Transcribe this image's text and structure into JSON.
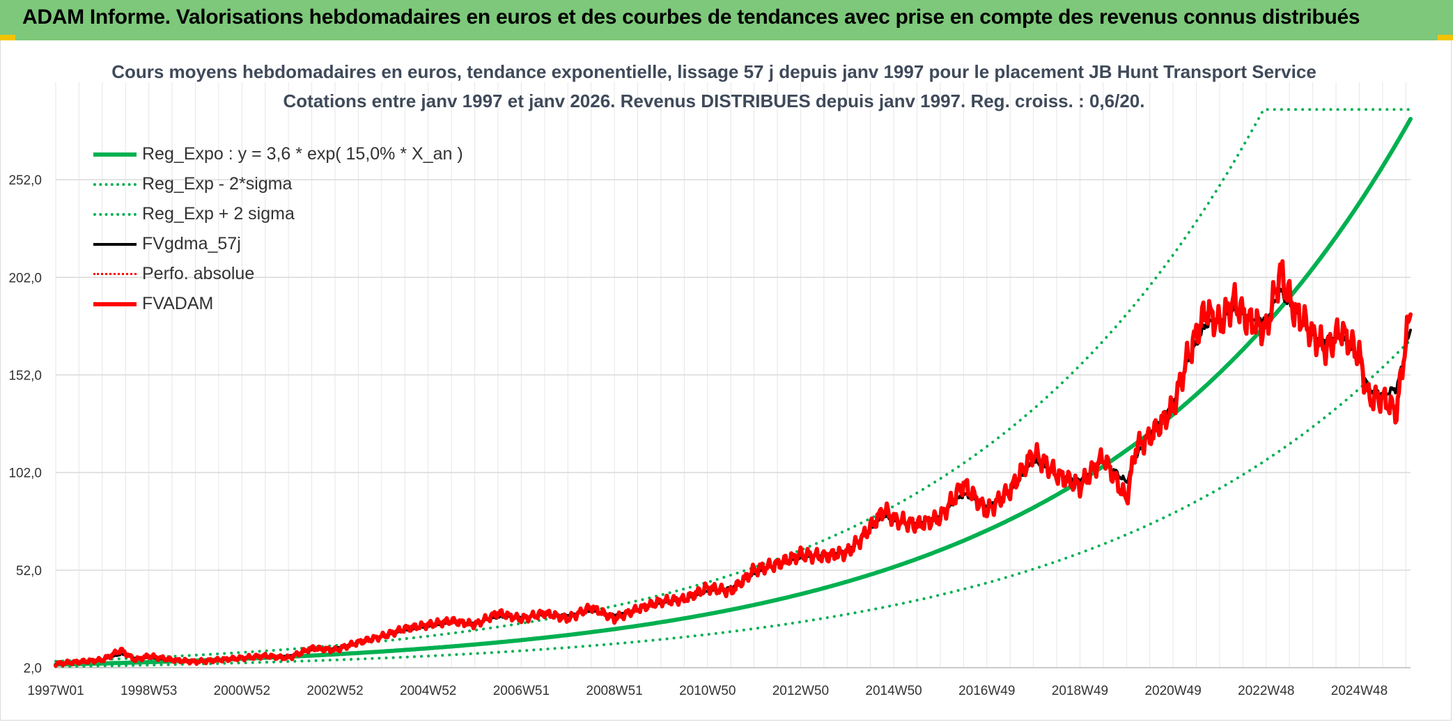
{
  "banner": {
    "title": "ADAM Informe. Valorisations hebdomadaires en euros et des courbes de tendances avec prise en compte des revenus connus distribués"
  },
  "colors": {
    "banner": "#7dc87a",
    "trend": "#00b050",
    "price": "#ff0000",
    "average": "#000000",
    "grid": "#d9d9d9"
  },
  "chart_data": {
    "type": "line",
    "title": "Cours moyens hebdomadaires en euros, tendance exponentielle, lissage 57 j depuis janv 1997 pour le placement JB Hunt Transport Service",
    "subtitle": "Cotations entre janv 1997 et janv 2026. Revenus DISTRIBUES depuis janv 1997. Reg. croiss. : 0,6/20.",
    "x_range": [
      1997.0,
      2026.1
    ],
    "ylim": [
      2.0,
      302.0
    ],
    "y_ticks": [
      2.0,
      52.0,
      102.0,
      152.0,
      202.0,
      252.0
    ],
    "y_tick_labels": [
      "2,0",
      "52,0",
      "102,0",
      "152,0",
      "202,0",
      "252,0"
    ],
    "x_tick_labels": [
      "1997W01",
      "1998W53",
      "2000W52",
      "2002W52",
      "2004W52",
      "2006W51",
      "2008W51",
      "2010W50",
      "2012W50",
      "2014W50",
      "2016W49",
      "2018W49",
      "2020W49",
      "2022W48",
      "2024W48"
    ],
    "x_tick_values": [
      1997.0,
      1999.0,
      2001.0,
      2003.0,
      2005.0,
      2007.0,
      2009.0,
      2011.0,
      2013.0,
      2015.0,
      2017.0,
      2019.0,
      2021.0,
      2023.0,
      2025.0
    ],
    "legend": [
      {
        "label": "Reg_Expo : y = 3,6 * exp( 15,0% *  X_an )",
        "color": "#00b050",
        "style": "solid",
        "width": 6
      },
      {
        "label": "Reg_Exp - 2*sigma",
        "color": "#00b050",
        "style": "dotted",
        "width": 4
      },
      {
        "label": "Reg_Exp + 2 sigma",
        "color": "#00b050",
        "style": "dotted",
        "width": 4
      },
      {
        "label": "FVgdma_57j",
        "color": "#000000",
        "style": "solid",
        "width": 4
      },
      {
        "label": "Perfo. absolue",
        "color": "#ff0000",
        "style": "dotted",
        "width": 3
      },
      {
        "label": "FVADAM",
        "color": "#ff0000",
        "style": "solid",
        "width": 6
      }
    ],
    "series": [
      {
        "name": "Reg_Expo",
        "model": "exp",
        "a": 3.6,
        "b": 0.15
      },
      {
        "name": "Reg_Exp - 2*sigma",
        "model": "exp",
        "a": 2.5,
        "b": 0.145
      },
      {
        "name": "Reg_Exp + 2 sigma",
        "model": "exp",
        "a": 5.3,
        "b": 0.154,
        "cap": 288
      },
      {
        "name": "FVADAM",
        "x": [
          1997.0,
          1997.5,
          1998.0,
          1998.4,
          1998.7,
          1999.0,
          1999.5,
          2000.0,
          2000.5,
          2001.0,
          2001.5,
          2002.0,
          2002.5,
          2003.0,
          2003.5,
          2004.0,
          2004.5,
          2005.0,
          2005.5,
          2006.0,
          2006.5,
          2007.0,
          2007.5,
          2008.0,
          2008.5,
          2009.0,
          2009.5,
          2010.0,
          2010.5,
          2011.0,
          2011.5,
          2012.0,
          2012.5,
          2013.0,
          2013.5,
          2014.0,
          2014.3,
          2014.8,
          2015.0,
          2015.5,
          2016.0,
          2016.5,
          2017.0,
          2017.5,
          2018.0,
          2018.5,
          2019.0,
          2019.5,
          2020.0,
          2020.2,
          2020.5,
          2021.0,
          2021.3,
          2021.7,
          2022.0,
          2022.3,
          2022.6,
          2023.0,
          2023.3,
          2023.6,
          2023.8,
          2024.0,
          2024.3,
          2024.6,
          2025.0,
          2025.2,
          2025.5,
          2025.8,
          2026.0,
          2026.1
        ],
        "values": [
          4,
          5,
          6,
          11,
          6,
          8,
          6,
          5,
          6,
          7,
          8,
          7,
          12,
          11,
          15,
          18,
          22,
          24,
          26,
          24,
          30,
          27,
          30,
          27,
          33,
          27,
          32,
          36,
          37,
          43,
          41,
          52,
          55,
          60,
          59,
          61,
          68,
          83,
          78,
          75,
          79,
          96,
          82,
          93,
          112,
          101,
          95,
          110,
          88,
          115,
          120,
          135,
          160,
          185,
          178,
          190,
          180,
          175,
          205,
          185,
          180,
          172,
          165,
          175,
          162,
          140,
          140,
          133,
          170,
          183
        ]
      },
      {
        "name": "FVgdma_57j",
        "x": [
          1997.0,
          1997.5,
          1998.0,
          1998.4,
          1998.7,
          1999.0,
          1999.5,
          2000.0,
          2000.5,
          2001.0,
          2001.5,
          2002.0,
          2002.5,
          2003.0,
          2003.5,
          2004.0,
          2004.5,
          2005.0,
          2005.5,
          2006.0,
          2006.5,
          2007.0,
          2007.5,
          2008.0,
          2008.5,
          2009.0,
          2009.5,
          2010.0,
          2010.5,
          2011.0,
          2011.5,
          2012.0,
          2012.5,
          2013.0,
          2013.5,
          2014.0,
          2014.3,
          2014.8,
          2015.0,
          2015.5,
          2016.0,
          2016.5,
          2017.0,
          2017.5,
          2018.0,
          2018.5,
          2019.0,
          2019.5,
          2020.0,
          2020.2,
          2020.5,
          2021.0,
          2021.3,
          2021.7,
          2022.0,
          2022.3,
          2022.6,
          2023.0,
          2023.3,
          2023.6,
          2023.8,
          2024.0,
          2024.3,
          2024.6,
          2025.0,
          2025.2,
          2025.5,
          2025.8,
          2026.0,
          2026.1
        ],
        "values": [
          4,
          5,
          6,
          9,
          7,
          7,
          6,
          5,
          6,
          7,
          8,
          8,
          11,
          12,
          15,
          18,
          21,
          23,
          25,
          25,
          28,
          28,
          29,
          29,
          31,
          29,
          32,
          35,
          37,
          41,
          43,
          50,
          55,
          58,
          60,
          62,
          68,
          80,
          77,
          76,
          80,
          91,
          85,
          92,
          108,
          101,
          98,
          108,
          97,
          110,
          122,
          138,
          158,
          178,
          180,
          185,
          182,
          180,
          195,
          185,
          178,
          172,
          170,
          172,
          160,
          145,
          142,
          145,
          165,
          175
        ]
      }
    ]
  }
}
